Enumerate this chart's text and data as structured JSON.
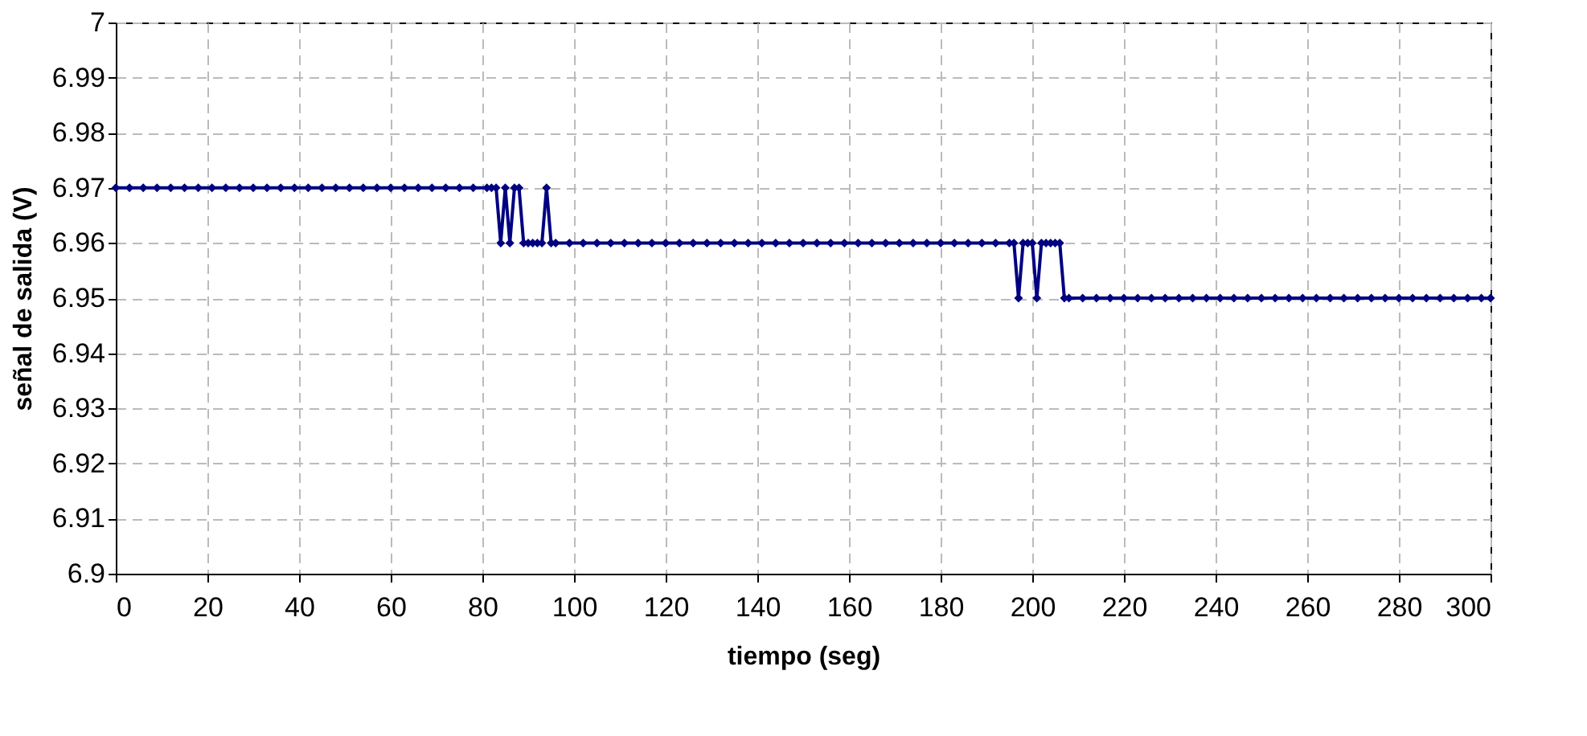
{
  "chart_data": {
    "type": "line",
    "xlabel": "tiempo (seg)",
    "ylabel": "señal de salida (V)",
    "x": [
      0,
      3,
      6,
      9,
      12,
      15,
      18,
      21,
      24,
      27,
      30,
      33,
      36,
      39,
      42,
      45,
      48,
      51,
      54,
      57,
      60,
      63,
      66,
      69,
      72,
      75,
      78,
      81,
      82,
      83,
      84,
      85,
      86,
      87,
      88,
      89,
      90,
      91,
      92,
      93,
      94,
      95,
      96,
      99,
      102,
      105,
      108,
      111,
      114,
      117,
      120,
      123,
      126,
      129,
      132,
      135,
      138,
      141,
      144,
      147,
      150,
      153,
      156,
      159,
      162,
      165,
      168,
      171,
      174,
      177,
      180,
      183,
      186,
      189,
      192,
      195,
      196,
      197,
      198,
      199,
      200,
      201,
      202,
      203,
      204,
      205,
      206,
      207,
      208,
      211,
      214,
      217,
      220,
      223,
      226,
      229,
      232,
      235,
      238,
      241,
      244,
      247,
      250,
      253,
      256,
      259,
      262,
      265,
      268,
      271,
      274,
      277,
      280,
      283,
      286,
      289,
      292,
      295,
      298,
      300
    ],
    "series": [
      {
        "color": "#000080",
        "values": [
          6.97,
          6.97,
          6.97,
          6.97,
          6.97,
          6.97,
          6.97,
          6.97,
          6.97,
          6.97,
          6.97,
          6.97,
          6.97,
          6.97,
          6.97,
          6.97,
          6.97,
          6.97,
          6.97,
          6.97,
          6.97,
          6.97,
          6.97,
          6.97,
          6.97,
          6.97,
          6.97,
          6.97,
          6.97,
          6.97,
          6.96,
          6.97,
          6.96,
          6.97,
          6.97,
          6.96,
          6.96,
          6.96,
          6.96,
          6.96,
          6.97,
          6.96,
          6.96,
          6.96,
          6.96,
          6.96,
          6.96,
          6.96,
          6.96,
          6.96,
          6.96,
          6.96,
          6.96,
          6.96,
          6.96,
          6.96,
          6.96,
          6.96,
          6.96,
          6.96,
          6.96,
          6.96,
          6.96,
          6.96,
          6.96,
          6.96,
          6.96,
          6.96,
          6.96,
          6.96,
          6.96,
          6.96,
          6.96,
          6.96,
          6.96,
          6.96,
          6.96,
          6.95,
          6.96,
          6.96,
          6.96,
          6.95,
          6.96,
          6.96,
          6.96,
          6.96,
          6.96,
          6.95,
          6.95,
          6.95,
          6.95,
          6.95,
          6.95,
          6.95,
          6.95,
          6.95,
          6.95,
          6.95,
          6.95,
          6.95,
          6.95,
          6.95,
          6.95,
          6.95,
          6.95,
          6.95,
          6.95,
          6.95,
          6.95,
          6.95,
          6.95,
          6.95,
          6.95,
          6.95,
          6.95,
          6.95,
          6.95,
          6.95,
          6.95,
          6.95
        ]
      }
    ],
    "xlim": [
      0,
      300
    ],
    "xticks": [
      0,
      20,
      40,
      60,
      80,
      100,
      120,
      140,
      160,
      180,
      200,
      220,
      240,
      260,
      280,
      300
    ],
    "ylim": [
      6.9,
      7
    ],
    "yticks": [
      6.9,
      6.91,
      6.92,
      6.93,
      6.94,
      6.95,
      6.96,
      6.97,
      6.98,
      6.99,
      7
    ],
    "grid": true,
    "marker": "diamond",
    "line_style": "solid"
  }
}
